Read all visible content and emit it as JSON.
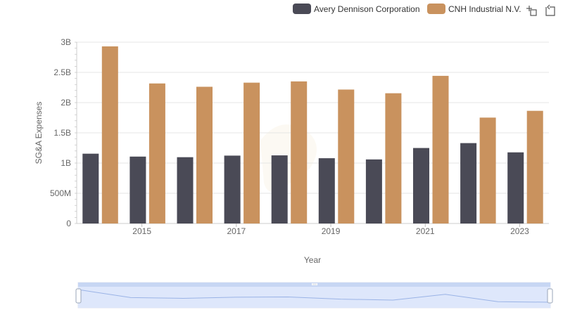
{
  "chart_data": {
    "type": "bar",
    "title": "",
    "xlabel": "Year",
    "ylabel": "SG&A Expenses",
    "x": [
      2014,
      2015,
      2016,
      2017,
      2018,
      2019,
      2020,
      2021,
      2022,
      2023
    ],
    "x_tick_labels": [
      "2015",
      "2017",
      "2019",
      "2021",
      "2023"
    ],
    "y_tick_labels": [
      "0",
      "500M",
      "1B",
      "1.5B",
      "2B",
      "2.5B",
      "3B"
    ],
    "ylim": [
      0,
      3000000000
    ],
    "grid": true,
    "legend_position": "top-right",
    "series": [
      {
        "name": "Avery Dennison Corporation",
        "color": "#4a4a56",
        "values": [
          1155000000,
          1107000000,
          1097000000,
          1123000000,
          1127000000,
          1080000000,
          1060000000,
          1249000000,
          1330000000,
          1177000000
        ]
      },
      {
        "name": "CNH Industrial N.V.",
        "color": "#c9925e",
        "values": [
          2930000000,
          2317000000,
          2262000000,
          2330000000,
          2351000000,
          2216000000,
          2155000000,
          2443000000,
          1752000000,
          1864000000
        ]
      }
    ]
  },
  "toolbar": {
    "zoom_icon": "zoom-crosshair-icon",
    "reset_icon": "reset-zoom-icon"
  },
  "navigator": {
    "handle_icon": "grip-icon"
  }
}
